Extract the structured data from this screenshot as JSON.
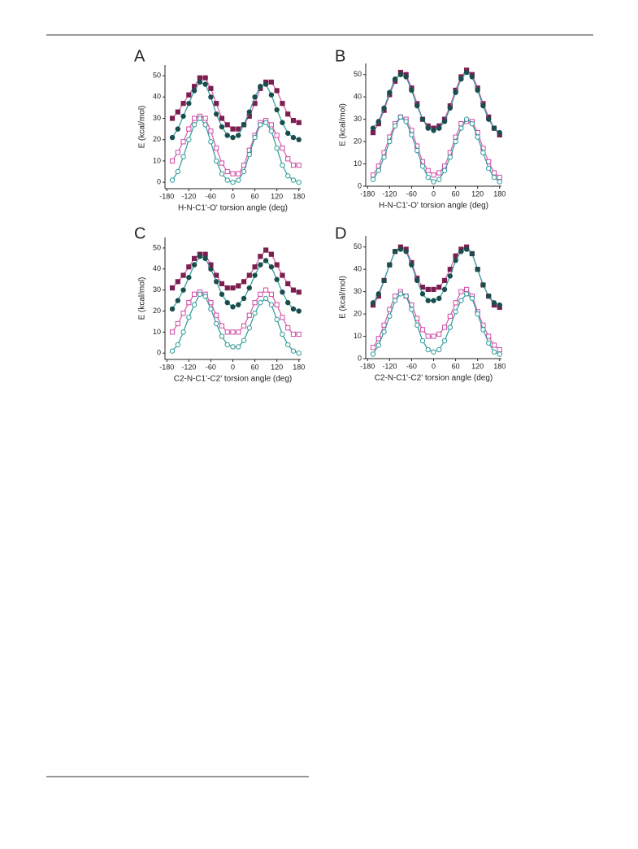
{
  "chart_data": [
    {
      "type": "line",
      "panel": "A",
      "xlabel": "H-N-C1'-O' torsion angle (deg)",
      "ylabel": "E (kcal/mol)",
      "x": [
        -165,
        -150,
        -135,
        -120,
        -105,
        -90,
        -75,
        -60,
        -45,
        -30,
        -15,
        0,
        15,
        30,
        45,
        60,
        75,
        90,
        105,
        120,
        135,
        150,
        165,
        180
      ],
      "xlim": [
        -185,
        185
      ],
      "xticks": [
        -180,
        -120,
        -60,
        0,
        60,
        120,
        180
      ],
      "ylim": [
        -3,
        55
      ],
      "yticks": [
        0,
        10,
        20,
        30,
        40,
        50
      ],
      "series": [
        {
          "color": "#7b1f50",
          "line_color": "#d55aa8",
          "marker": "square",
          "filled": true,
          "values": [
            30,
            33,
            37,
            41,
            45,
            49,
            49,
            44,
            37,
            30,
            27,
            25,
            25,
            27,
            31,
            37,
            44,
            47,
            47,
            43,
            37,
            32,
            29,
            28
          ]
        },
        {
          "color": "#1b4d4d",
          "line_color": "#2a9a9a",
          "marker": "circle",
          "filled": true,
          "values": [
            21,
            25,
            31,
            37,
            43,
            47,
            46,
            40,
            32,
            26,
            22,
            21,
            22,
            27,
            33,
            40,
            45,
            46,
            41,
            34,
            28,
            23,
            21,
            20
          ]
        },
        {
          "color": "#d04aa6",
          "line_color": "#d55aa8",
          "marker": "square",
          "filled": false,
          "values": [
            10,
            14,
            19,
            25,
            30,
            31,
            30,
            24,
            16,
            9,
            5,
            4,
            4,
            8,
            15,
            22,
            28,
            29,
            27,
            22,
            16,
            11,
            8,
            8
          ]
        },
        {
          "color": "#2f9a9a",
          "line_color": "#2a9a9a",
          "marker": "circle",
          "filled": false,
          "values": [
            1,
            5,
            12,
            20,
            27,
            30,
            27,
            19,
            10,
            4,
            1,
            0,
            1,
            5,
            13,
            21,
            27,
            28,
            24,
            16,
            8,
            3,
            1,
            0
          ]
        }
      ]
    },
    {
      "type": "line",
      "panel": "B",
      "xlabel": "H-N-C1'-O' torsion angle (deg)",
      "ylabel": "E (kcal/mol)",
      "x": [
        -165,
        -150,
        -135,
        -120,
        -105,
        -90,
        -75,
        -60,
        -45,
        -30,
        -15,
        0,
        15,
        30,
        45,
        60,
        75,
        90,
        105,
        120,
        135,
        150,
        165,
        180
      ],
      "xlim": [
        -185,
        185
      ],
      "xticks": [
        -180,
        -120,
        -60,
        0,
        60,
        120,
        180
      ],
      "ylim": [
        0,
        55
      ],
      "yticks": [
        0,
        10,
        20,
        30,
        40,
        50
      ],
      "series": [
        {
          "color": "#7b1f50",
          "line_color": "#d55aa8",
          "marker": "square",
          "filled": true,
          "values": [
            24,
            28,
            34,
            41,
            47,
            51,
            50,
            44,
            37,
            30,
            27,
            26,
            27,
            30,
            36,
            43,
            49,
            52,
            50,
            44,
            37,
            31,
            26,
            23
          ]
        },
        {
          "color": "#1b4d4d",
          "line_color": "#2a9a9a",
          "marker": "circle",
          "filled": true,
          "values": [
            26,
            29,
            35,
            42,
            48,
            50,
            49,
            43,
            36,
            30,
            26,
            25,
            26,
            29,
            35,
            42,
            48,
            51,
            49,
            43,
            36,
            30,
            26,
            24
          ]
        },
        {
          "color": "#d04aa6",
          "line_color": "#d55aa8",
          "marker": "square",
          "filled": false,
          "values": [
            5,
            9,
            15,
            22,
            28,
            31,
            30,
            25,
            18,
            11,
            7,
            5,
            6,
            9,
            15,
            22,
            28,
            29,
            29,
            24,
            17,
            11,
            6,
            4
          ]
        },
        {
          "color": "#2f9a9a",
          "line_color": "#2a9a9a",
          "marker": "circle",
          "filled": false,
          "values": [
            3,
            7,
            13,
            20,
            27,
            31,
            29,
            23,
            16,
            9,
            4,
            2,
            3,
            7,
            13,
            20,
            26,
            30,
            28,
            22,
            15,
            8,
            4,
            2
          ]
        }
      ]
    },
    {
      "type": "line",
      "panel": "C",
      "xlabel": "C2-N-C1'-C2' torsion angle (deg)",
      "ylabel": "E (kcal/mol)",
      "x": [
        -165,
        -150,
        -135,
        -120,
        -105,
        -90,
        -75,
        -60,
        -45,
        -30,
        -15,
        0,
        15,
        30,
        45,
        60,
        75,
        90,
        105,
        120,
        135,
        150,
        165,
        180
      ],
      "xlim": [
        -185,
        185
      ],
      "xticks": [
        -180,
        -120,
        -60,
        0,
        60,
        120,
        180
      ],
      "ylim": [
        -3,
        55
      ],
      "yticks": [
        0,
        10,
        20,
        30,
        40,
        50
      ],
      "series": [
        {
          "color": "#7b1f50",
          "line_color": "#d55aa8",
          "marker": "square",
          "filled": true,
          "values": [
            31,
            34,
            37,
            41,
            45,
            47,
            47,
            42,
            37,
            33,
            31,
            31,
            32,
            34,
            37,
            41,
            46,
            49,
            47,
            42,
            37,
            33,
            30,
            29
          ]
        },
        {
          "color": "#1b4d4d",
          "line_color": "#2a9a9a",
          "marker": "circle",
          "filled": true,
          "values": [
            21,
            25,
            30,
            36,
            42,
            46,
            45,
            40,
            34,
            28,
            24,
            22,
            23,
            26,
            31,
            37,
            42,
            44,
            41,
            35,
            29,
            24,
            21,
            20
          ]
        },
        {
          "color": "#d04aa6",
          "line_color": "#d55aa8",
          "marker": "square",
          "filled": false,
          "values": [
            10,
            14,
            19,
            24,
            28,
            29,
            28,
            24,
            18,
            13,
            10,
            10,
            10,
            13,
            18,
            24,
            28,
            30,
            28,
            23,
            17,
            12,
            9,
            9
          ]
        },
        {
          "color": "#2f9a9a",
          "line_color": "#2a9a9a",
          "marker": "circle",
          "filled": false,
          "values": [
            1,
            4,
            10,
            17,
            23,
            28,
            27,
            21,
            14,
            8,
            4,
            3,
            3,
            6,
            12,
            19,
            24,
            26,
            23,
            16,
            9,
            4,
            1,
            0
          ]
        }
      ]
    },
    {
      "type": "line",
      "panel": "D",
      "xlabel": "C2-N-C1'-C2' torsion angle (deg)",
      "ylabel": "E (kcal/mol)",
      "x": [
        -165,
        -150,
        -135,
        -120,
        -105,
        -90,
        -75,
        -60,
        -45,
        -30,
        -15,
        0,
        15,
        30,
        45,
        60,
        75,
        90,
        105,
        120,
        135,
        150,
        165,
        180
      ],
      "xlim": [
        -185,
        185
      ],
      "xticks": [
        -180,
        -120,
        -60,
        0,
        60,
        120,
        180
      ],
      "ylim": [
        0,
        55
      ],
      "yticks": [
        0,
        10,
        20,
        30,
        40,
        50
      ],
      "series": [
        {
          "color": "#7b1f50",
          "line_color": "#d55aa8",
          "marker": "square",
          "filled": true,
          "values": [
            24,
            28,
            35,
            42,
            48,
            50,
            49,
            43,
            36,
            32,
            31,
            31,
            32,
            35,
            40,
            46,
            49,
            50,
            47,
            40,
            33,
            28,
            24,
            23
          ]
        },
        {
          "color": "#1b4d4d",
          "line_color": "#2a9a9a",
          "marker": "circle",
          "filled": true,
          "values": [
            25,
            29,
            35,
            42,
            48,
            49,
            48,
            42,
            35,
            29,
            26,
            26,
            27,
            31,
            37,
            44,
            48,
            49,
            47,
            40,
            33,
            28,
            25,
            24
          ]
        },
        {
          "color": "#d04aa6",
          "line_color": "#d55aa8",
          "marker": "square",
          "filled": false,
          "values": [
            5,
            9,
            15,
            22,
            28,
            30,
            28,
            24,
            18,
            13,
            10,
            10,
            11,
            14,
            19,
            25,
            30,
            31,
            28,
            21,
            15,
            10,
            6,
            4
          ]
        },
        {
          "color": "#2f9a9a",
          "line_color": "#2a9a9a",
          "marker": "circle",
          "filled": false,
          "values": [
            2,
            6,
            12,
            19,
            26,
            29,
            28,
            22,
            15,
            8,
            4,
            3,
            4,
            8,
            14,
            21,
            26,
            29,
            27,
            20,
            13,
            7,
            3,
            2
          ]
        }
      ]
    }
  ]
}
